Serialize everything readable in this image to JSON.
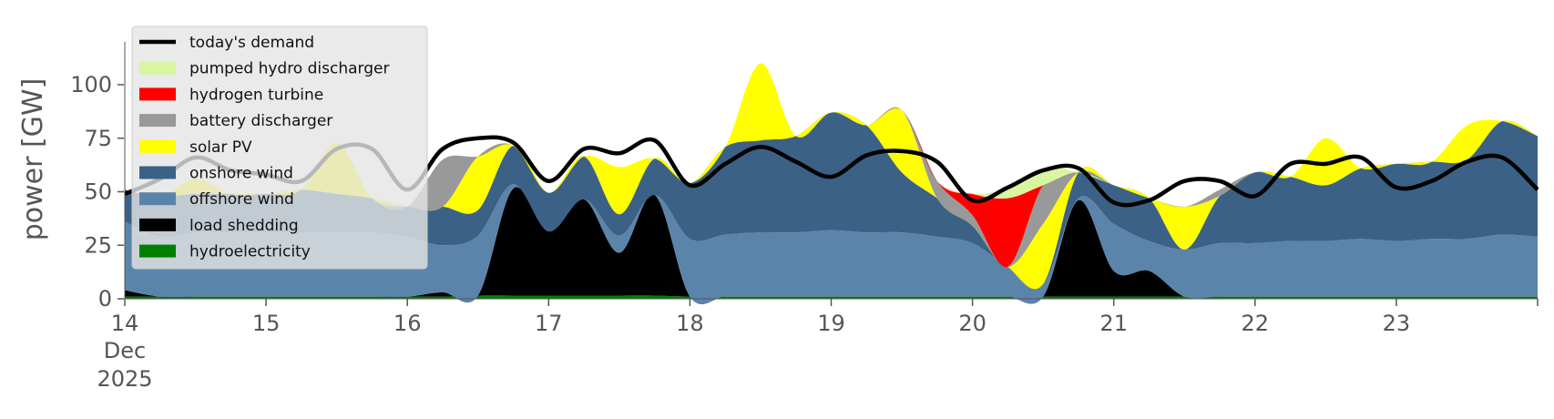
{
  "chart_data": {
    "type": "area",
    "title": "",
    "xlabel": "",
    "ylabel": "power [GW]",
    "ylim": [
      0,
      120
    ],
    "xlim": [
      14,
      24
    ],
    "x_unit": "day of December 2025",
    "yticks": [
      0,
      25,
      50,
      75,
      100
    ],
    "xticks": [
      {
        "x": 14,
        "label": "14",
        "sub": [
          "Dec",
          "2025"
        ]
      },
      {
        "x": 15,
        "label": "15"
      },
      {
        "x": 16,
        "label": "16"
      },
      {
        "x": 17,
        "label": "17"
      },
      {
        "x": 18,
        "label": "18"
      },
      {
        "x": 19,
        "label": "19"
      },
      {
        "x": 20,
        "label": "20"
      },
      {
        "x": 21,
        "label": "21"
      },
      {
        "x": 22,
        "label": "22"
      },
      {
        "x": 23,
        "label": "23"
      }
    ],
    "legend_position": "top-left",
    "grid": false,
    "x": [
      14,
      14.25,
      14.5,
      14.75,
      15,
      15.25,
      15.5,
      15.75,
      16,
      16.25,
      16.5,
      16.75,
      17,
      17.25,
      17.5,
      17.75,
      18,
      18.25,
      18.5,
      18.75,
      19,
      19.25,
      19.5,
      19.75,
      20,
      20.25,
      20.5,
      20.75,
      21,
      21.25,
      21.5,
      21.75,
      22,
      22.25,
      22.5,
      22.75,
      23,
      23.25,
      23.5,
      23.75,
      24
    ],
    "series": [
      {
        "name": "hydroelectricity",
        "color": "#008000",
        "values": [
          1,
          1,
          1,
          1,
          1,
          1,
          1,
          1,
          1,
          1,
          1.5,
          1.5,
          1.5,
          1.5,
          1.5,
          1.5,
          1,
          1,
          1,
          1,
          1,
          1,
          1,
          1,
          1,
          1,
          1,
          1,
          1,
          1,
          1,
          1,
          1,
          1,
          1,
          1,
          1,
          1,
          1,
          1,
          1
        ]
      },
      {
        "name": "load shedding",
        "color": "#000000",
        "values": [
          3,
          0,
          0,
          0,
          0,
          0,
          0,
          0,
          0,
          2,
          0,
          50,
          30,
          45,
          20,
          47,
          0,
          0,
          0,
          0,
          0,
          0,
          0,
          0,
          0,
          0,
          0,
          45,
          12,
          12,
          0,
          0,
          0,
          0,
          0,
          0,
          0,
          0,
          0,
          0,
          0
        ]
      },
      {
        "name": "offshore wind",
        "color": "#5b84aa",
        "values": [
          32,
          28,
          30,
          30,
          30,
          30,
          30,
          30,
          28,
          22,
          28,
          2,
          0,
          0,
          8,
          0,
          27,
          29,
          30,
          30,
          31,
          30,
          30,
          28,
          25,
          14,
          6,
          1,
          22,
          14,
          22,
          25,
          25,
          26,
          26,
          27,
          26,
          27,
          27,
          29,
          28
        ]
      },
      {
        "name": "onshore wind",
        "color": "#3b6186",
        "values": [
          15,
          19,
          18,
          18,
          18,
          20,
          18,
          16,
          14,
          18,
          12,
          18,
          18,
          20,
          10,
          17,
          26,
          41,
          43,
          45,
          55,
          50,
          28,
          18,
          8,
          0,
          0,
          12,
          18,
          20,
          0,
          22,
          33,
          30,
          26,
          33,
          36,
          36,
          37,
          53,
          47
        ]
      },
      {
        "name": "solar PV",
        "color": "#ffff00",
        "values": [
          0,
          0,
          7,
          0,
          0,
          0,
          24,
          0,
          0,
          0,
          25,
          0,
          0,
          0,
          22,
          0,
          0,
          0,
          36,
          0,
          0,
          0,
          29,
          0,
          0,
          0,
          28,
          0,
          0,
          0,
          20,
          0,
          0,
          0,
          22,
          0,
          0,
          0,
          16,
          0,
          0
        ]
      },
      {
        "name": "battery discharger",
        "color": "#999999",
        "values": [
          0,
          0,
          0,
          0,
          0,
          0,
          0,
          0,
          0,
          22,
          0,
          0,
          0,
          0,
          0,
          0,
          0,
          0,
          0,
          0,
          0,
          0,
          0,
          8,
          5,
          0,
          18,
          0,
          0,
          0,
          0,
          3,
          0,
          0,
          0,
          0,
          0,
          0,
          0,
          0,
          0
        ]
      },
      {
        "name": "hydrogen turbine",
        "color": "#ff0000",
        "values": [
          0,
          0,
          0,
          0,
          0,
          0,
          0,
          0,
          0,
          0,
          0,
          0,
          0,
          0,
          0,
          0,
          0,
          0,
          0,
          0,
          0,
          0,
          0,
          0,
          10,
          32,
          0,
          0,
          0,
          0,
          0,
          0,
          0,
          0,
          0,
          0,
          0,
          0,
          0,
          0,
          0
        ]
      },
      {
        "name": "pumped hydro discharger",
        "color": "#d8f5a0",
        "values": [
          0,
          0,
          0,
          0,
          0,
          0,
          0,
          0,
          0,
          0,
          0,
          0,
          0,
          0,
          0,
          0,
          0,
          0,
          0,
          0,
          0,
          0,
          0,
          0,
          0,
          5,
          8,
          0,
          0,
          0,
          0,
          0,
          0,
          0,
          0,
          0,
          0,
          0,
          0,
          0,
          0
        ]
      }
    ],
    "demand": {
      "name": "today's demand",
      "color": "#000000",
      "values": [
        49,
        56,
        66,
        60,
        58,
        55,
        70,
        70,
        51,
        70,
        75,
        73,
        55,
        70,
        68,
        74,
        53,
        63,
        71,
        64,
        57,
        67,
        69,
        64,
        46,
        52,
        60,
        61,
        45,
        46,
        55,
        55,
        48,
        63,
        63,
        66,
        52,
        55,
        64,
        66,
        51
      ]
    },
    "legend": [
      "today's demand",
      "pumped hydro discharger",
      "hydrogen turbine",
      "battery discharger",
      "solar PV",
      "onshore wind",
      "offshore wind",
      "load shedding",
      "hydroelectricity"
    ]
  }
}
